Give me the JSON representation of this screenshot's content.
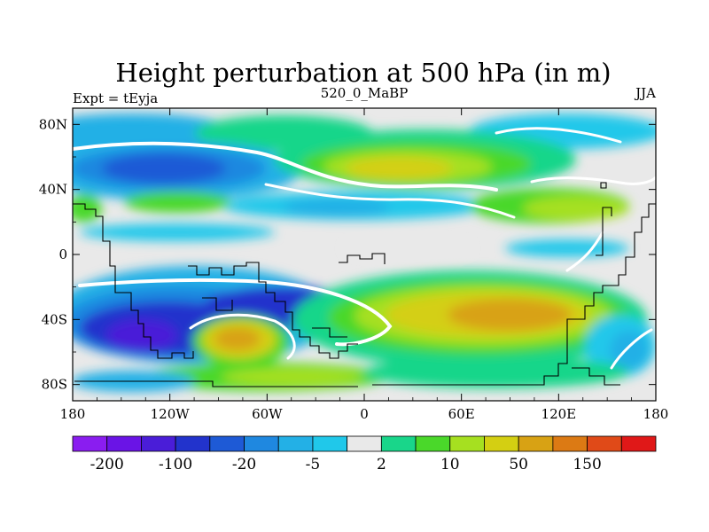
{
  "chart_data": {
    "type": "heatmap",
    "title": "Height perturbation at 500 hPa (in m)",
    "left_string": "Expt = tEyja",
    "center_string": "520_0_MaBP",
    "right_string": "JJA",
    "xlim": [
      -180,
      180
    ],
    "ylim": [
      -90,
      90
    ],
    "x_ticks": [
      {
        "value": -180,
        "label": "180"
      },
      {
        "value": -120,
        "label": "120W"
      },
      {
        "value": -60,
        "label": "60W"
      },
      {
        "value": 0,
        "label": "0"
      },
      {
        "value": 60,
        "label": "60E"
      },
      {
        "value": 120,
        "label": "120E"
      },
      {
        "value": 180,
        "label": "180"
      }
    ],
    "y_ticks": [
      {
        "value": 80,
        "label": "80N"
      },
      {
        "value": 40,
        "label": "40N"
      },
      {
        "value": 0,
        "label": "0"
      },
      {
        "value": -40,
        "label": "40S"
      },
      {
        "value": -80,
        "label": "80S"
      }
    ],
    "colorbar": {
      "colors": [
        "#8a1df0",
        "#6a14e6",
        "#4a1dd8",
        "#2233cc",
        "#1e5ad6",
        "#1f88e0",
        "#23b0e6",
        "#20c8ea",
        "#e9e9e9",
        "#19d68a",
        "#4ad82a",
        "#a6e020",
        "#d4cf12",
        "#d8a214",
        "#dc7a14",
        "#e04a18",
        "#e01818"
      ],
      "labels": [
        {
          "boundary": 1,
          "text": "-200"
        },
        {
          "boundary": 3,
          "text": "-100"
        },
        {
          "boundary": 5,
          "text": "-20"
        },
        {
          "boundary": 7,
          "text": "-5"
        },
        {
          "boundary": 9,
          "text": "2"
        },
        {
          "boundary": 11,
          "text": "10"
        },
        {
          "boundary": 13,
          "text": "50"
        },
        {
          "boundary": 15,
          "text": "150"
        }
      ]
    }
  }
}
